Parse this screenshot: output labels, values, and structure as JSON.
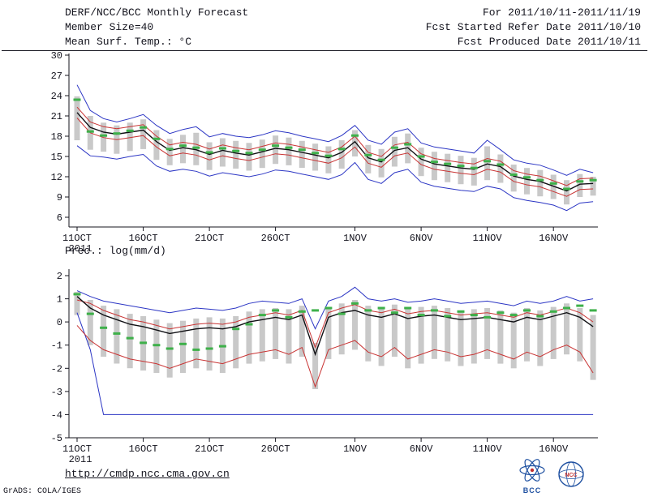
{
  "header": {
    "line1_left": "DERF/NCC/BCC Monthly Forecast",
    "line2_left": "Member Size=40",
    "line3_left": "Mean Surf. Temp.: °C",
    "line1_right": "For 2011/10/11-2011/11/19",
    "line2_right": "Fcst Started Refer Date 2011/10/10",
    "line3_right": "Fcst Produced Date 2011/10/11"
  },
  "footer": {
    "url": "http://cmdp.ncc.cma.gov.cn",
    "grads_credit": "GrADS: COLA/IGES",
    "logos": [
      {
        "name": "bcc-logo",
        "label": "BCC"
      },
      {
        "name": "ncc-logo",
        "label": "NCC"
      }
    ]
  },
  "colors": {
    "text": "#14141e",
    "envelope_blue": "#2b35c4",
    "quartile_red": "#c93434",
    "mean_black": "#101014",
    "obs_green": "#3eb04a",
    "spread_gray": "#c9c9c9"
  },
  "chart_data": [
    {
      "type": "line",
      "title": "Mean Surf. Temp.: °C",
      "ylim": [
        6,
        30
      ],
      "yticks": [
        6,
        9,
        12,
        15,
        18,
        21,
        24,
        27,
        30
      ],
      "n_days": 40,
      "x_tick_labels": [
        "11OCT",
        "16OCT",
        "21OCT",
        "26OCT",
        "1NOV",
        "6NOV",
        "11NOV",
        "16NOV"
      ],
      "x_tick_days": [
        0,
        5,
        10,
        15,
        21,
        26,
        31,
        36
      ],
      "year_label": "2011",
      "spread_color": "#c9c9c9",
      "spread_top": [
        23.9,
        21.0,
        20.0,
        19.6,
        20.0,
        20.5,
        18.9,
        17.6,
        18.2,
        18.5,
        17.1,
        17.7,
        17.3,
        17.0,
        17.5,
        18.1,
        17.8,
        17.3,
        16.9,
        16.5,
        17.4,
        18.9,
        16.7,
        16.1,
        17.9,
        18.4,
        16.3,
        15.7,
        15.4,
        15.1,
        14.8,
        16.5,
        15.3,
        13.8,
        13.3,
        13.0,
        12.3,
        11.5,
        12.4,
        12.0
      ],
      "spread_bottom": [
        17.4,
        16.0,
        15.7,
        15.4,
        15.8,
        16.1,
        14.5,
        13.7,
        14.0,
        13.7,
        13.0,
        13.5,
        13.2,
        12.9,
        13.3,
        13.9,
        13.7,
        13.3,
        12.9,
        12.5,
        13.2,
        15.0,
        12.5,
        11.9,
        13.5,
        14.0,
        12.1,
        11.5,
        11.2,
        10.9,
        10.7,
        11.5,
        11.1,
        9.8,
        9.4,
        9.1,
        8.7,
        7.9,
        9.0,
        9.2
      ],
      "lines": [
        {
          "name": "ensemble-max",
          "color": "#2b35c4",
          "width": 1,
          "values": [
            25.6,
            21.8,
            20.6,
            20.1,
            20.6,
            21.2,
            19.6,
            18.4,
            19.0,
            19.4,
            17.9,
            18.4,
            18.0,
            17.8,
            18.2,
            18.8,
            18.5,
            18.0,
            17.6,
            17.2,
            18.1,
            19.6,
            17.4,
            16.8,
            18.6,
            19.1,
            17.0,
            16.4,
            16.1,
            15.8,
            15.5,
            17.4,
            16.0,
            14.5,
            14.0,
            13.7,
            13.0,
            12.2,
            13.1,
            12.6
          ]
        },
        {
          "name": "ensemble-min",
          "color": "#2b35c4",
          "width": 1,
          "values": [
            16.6,
            15.1,
            14.9,
            14.6,
            15.0,
            15.3,
            13.6,
            12.8,
            13.1,
            12.8,
            12.1,
            12.6,
            12.3,
            12.0,
            12.4,
            13.0,
            12.8,
            12.4,
            12.0,
            11.6,
            12.3,
            14.1,
            11.6,
            11.0,
            12.6,
            13.1,
            11.2,
            10.6,
            10.3,
            10.0,
            9.8,
            10.6,
            10.2,
            8.9,
            8.5,
            8.2,
            7.8,
            7.0,
            8.1,
            8.3
          ]
        },
        {
          "name": "upper-quartile",
          "color": "#c93434",
          "width": 1,
          "values": [
            22.3,
            20.1,
            19.4,
            19.1,
            19.4,
            19.7,
            18.0,
            16.7,
            17.1,
            16.8,
            16.1,
            16.7,
            16.3,
            16.0,
            16.5,
            17.0,
            16.8,
            16.4,
            16.0,
            15.6,
            16.4,
            18.0,
            15.6,
            15.0,
            16.7,
            17.1,
            15.4,
            14.7,
            14.4,
            14.1,
            13.9,
            14.7,
            14.3,
            12.9,
            12.4,
            12.1,
            11.4,
            10.7,
            11.7,
            11.8
          ]
        },
        {
          "name": "lower-quartile",
          "color": "#c93434",
          "width": 1,
          "values": [
            20.7,
            18.5,
            17.8,
            17.5,
            17.8,
            18.1,
            16.4,
            15.1,
            15.5,
            15.2,
            14.5,
            15.1,
            14.7,
            14.4,
            14.9,
            15.4,
            15.2,
            14.8,
            14.4,
            14.0,
            14.8,
            16.4,
            14.0,
            13.4,
            15.1,
            15.5,
            13.8,
            13.1,
            12.8,
            12.5,
            12.3,
            13.1,
            12.7,
            11.3,
            10.8,
            10.5,
            9.8,
            9.1,
            10.1,
            10.2
          ]
        },
        {
          "name": "ensemble-mean",
          "color": "#101014",
          "width": 1.4,
          "values": [
            21.5,
            19.3,
            18.6,
            18.3,
            18.6,
            18.9,
            17.2,
            15.9,
            16.3,
            16.0,
            15.3,
            15.9,
            15.5,
            15.2,
            15.7,
            16.2,
            16.0,
            15.6,
            15.2,
            14.8,
            15.6,
            17.2,
            14.8,
            14.2,
            15.9,
            16.3,
            14.6,
            13.9,
            13.6,
            13.3,
            13.1,
            13.9,
            13.5,
            12.1,
            11.6,
            11.3,
            10.6,
            9.9,
            10.9,
            11.0
          ]
        }
      ],
      "markers": {
        "name": "observation",
        "color": "#3eb04a",
        "values": [
          23.4,
          18.7,
          18.1,
          18.4,
          18.8,
          19.3,
          17.6,
          16.1,
          16.6,
          16.3,
          15.6,
          16.2,
          15.8,
          15.5,
          16.0,
          16.6,
          16.3,
          16.0,
          15.5,
          15.1,
          16.1,
          18.1,
          15.2,
          14.5,
          16.3,
          16.8,
          15.0,
          14.2,
          13.9,
          13.6,
          13.3,
          14.3,
          13.8,
          12.3,
          11.9,
          11.5,
          11.0,
          10.2,
          11.3,
          11.5
        ]
      }
    },
    {
      "type": "line",
      "title": "Prec.: log(mm/d)",
      "ylim": [
        -5,
        2
      ],
      "yticks": [
        -5,
        -4,
        -3,
        -2,
        -1,
        0,
        1,
        2
      ],
      "n_days": 40,
      "x_tick_labels": [
        "11OCT",
        "16OCT",
        "21OCT",
        "26OCT",
        "1NOV",
        "6NOV",
        "11NOV",
        "16NOV"
      ],
      "x_tick_days": [
        0,
        5,
        10,
        15,
        21,
        26,
        31,
        36
      ],
      "year_label": "2011",
      "spread_color": "#c9c9c9",
      "spread_top": [
        1.3,
        0.95,
        0.7,
        0.55,
        0.35,
        0.25,
        0.1,
        -0.05,
        0.05,
        0.15,
        0.2,
        0.15,
        0.25,
        0.45,
        0.55,
        0.6,
        0.55,
        0.7,
        -0.9,
        0.6,
        0.8,
        0.95,
        0.7,
        0.6,
        0.75,
        0.55,
        0.65,
        0.7,
        0.6,
        0.5,
        0.55,
        0.6,
        0.5,
        0.4,
        0.6,
        0.5,
        0.65,
        0.8,
        0.6,
        0.3
      ],
      "spread_bottom": [
        0.3,
        -1.0,
        -1.5,
        -1.8,
        -2.0,
        -2.1,
        -2.2,
        -2.4,
        -2.2,
        -2.0,
        -2.1,
        -2.2,
        -2.0,
        -1.8,
        -1.7,
        -1.6,
        -1.8,
        -1.5,
        -2.9,
        -1.6,
        -1.4,
        -1.2,
        -1.7,
        -1.9,
        -1.5,
        -2.0,
        -1.8,
        -1.6,
        -1.7,
        -1.9,
        -1.8,
        -1.6,
        -1.8,
        -2.0,
        -1.7,
        -1.9,
        -1.6,
        -1.4,
        -1.7,
        -2.5
      ],
      "lines": [
        {
          "name": "ensemble-max",
          "color": "#2b35c4",
          "width": 1,
          "values": [
            1.35,
            1.1,
            0.9,
            0.8,
            0.7,
            0.6,
            0.5,
            0.4,
            0.5,
            0.6,
            0.55,
            0.5,
            0.6,
            0.8,
            0.9,
            0.85,
            0.8,
            1.0,
            -0.3,
            0.9,
            1.1,
            1.5,
            1.0,
            0.9,
            1.0,
            0.85,
            0.9,
            1.0,
            0.9,
            0.8,
            0.85,
            0.9,
            0.8,
            0.7,
            0.9,
            0.8,
            0.9,
            1.1,
            0.9,
            1.0
          ]
        },
        {
          "name": "ensemble-min",
          "color": "#2b35c4",
          "width": 1,
          "values": [
            0.4,
            -1.2,
            -4,
            -4,
            -4,
            -4,
            -4,
            -4,
            -4,
            -4,
            -4,
            -4,
            -4,
            -4,
            -4,
            -4,
            -4,
            -4,
            -4,
            -4,
            -4,
            -4,
            -4,
            -4,
            -4,
            -4,
            -4,
            -4,
            -4,
            -4,
            -4,
            -4,
            -4,
            -4,
            -4,
            -4,
            -4,
            -4,
            -4,
            -4
          ]
        },
        {
          "name": "upper-quartile",
          "color": "#c93434",
          "width": 1,
          "values": [
            0.95,
            0.8,
            0.5,
            0.3,
            0.1,
            0.0,
            -0.15,
            -0.3,
            -0.2,
            -0.1,
            -0.05,
            -0.1,
            0.0,
            0.2,
            0.3,
            0.4,
            0.3,
            0.5,
            -1.1,
            0.4,
            0.6,
            0.75,
            0.5,
            0.4,
            0.55,
            0.35,
            0.45,
            0.5,
            0.4,
            0.3,
            0.35,
            0.4,
            0.3,
            0.2,
            0.4,
            0.3,
            0.45,
            0.6,
            0.4,
            0.0
          ]
        },
        {
          "name": "lower-quartile",
          "color": "#c93434",
          "width": 1,
          "values": [
            -0.15,
            -0.8,
            -1.2,
            -1.4,
            -1.6,
            -1.7,
            -1.8,
            -2.0,
            -1.8,
            -1.6,
            -1.7,
            -1.8,
            -1.6,
            -1.4,
            -1.3,
            -1.2,
            -1.4,
            -1.1,
            -2.8,
            -1.2,
            -1.0,
            -0.8,
            -1.3,
            -1.5,
            -1.1,
            -1.6,
            -1.4,
            -1.2,
            -1.3,
            -1.5,
            -1.4,
            -1.2,
            -1.4,
            -1.6,
            -1.3,
            -1.5,
            -1.2,
            -1.0,
            -1.3,
            -2.2
          ]
        },
        {
          "name": "ensemble-mean",
          "color": "#101014",
          "width": 1.4,
          "values": [
            1.1,
            0.6,
            0.3,
            0.1,
            -0.1,
            -0.2,
            -0.35,
            -0.5,
            -0.4,
            -0.3,
            -0.25,
            -0.3,
            -0.2,
            0.0,
            0.1,
            0.2,
            0.1,
            0.3,
            -1.4,
            0.2,
            0.4,
            0.5,
            0.3,
            0.2,
            0.35,
            0.15,
            0.25,
            0.3,
            0.2,
            0.1,
            0.15,
            0.2,
            0.1,
            0.0,
            0.2,
            0.1,
            0.25,
            0.4,
            0.2,
            -0.2
          ]
        }
      ],
      "markers": {
        "name": "observation",
        "color": "#3eb04a",
        "values": [
          1.2,
          0.35,
          -0.25,
          -0.5,
          -0.7,
          -0.9,
          -1.0,
          -1.15,
          -0.95,
          -1.2,
          -1.15,
          -1.05,
          -0.3,
          -0.1,
          0.3,
          0.5,
          0.2,
          0.45,
          0.5,
          0.6,
          0.35,
          0.8,
          0.5,
          0.6,
          0.4,
          0.6,
          0.3,
          0.5,
          0.25,
          0.45,
          0.3,
          0.2,
          0.4,
          0.3,
          0.5,
          0.25,
          0.45,
          0.6,
          0.7,
          0.5
        ]
      }
    }
  ]
}
